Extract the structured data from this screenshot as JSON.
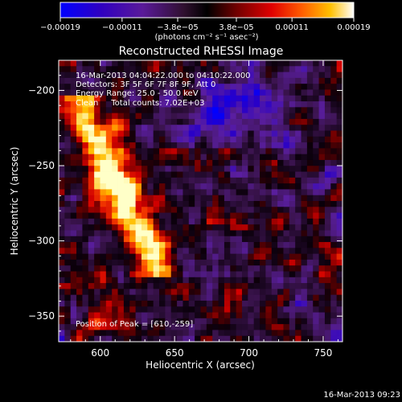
{
  "chart_data": {
    "type": "heatmap",
    "title": "Reconstructed RHESSI Image",
    "xlabel": "Heliocentric X (arcsec)",
    "ylabel": "Heliocentric Y (arcsec)",
    "xlim": [
      572,
      763
    ],
    "ylim": [
      -367,
      -180
    ],
    "x_ticks": [
      600,
      650,
      700,
      750
    ],
    "x_tick_labels": [
      "600",
      "650",
      "700",
      "750"
    ],
    "y_ticks": [
      -200,
      -250,
      -300,
      -350
    ],
    "y_tick_labels": [
      "-200",
      "-250",
      "-300",
      "-350"
    ],
    "colorbar": {
      "range": [
        -0.00019,
        0.00019
      ],
      "tick_labels": [
        "-0.00019",
        "-0.00011",
        "-3.8e-05",
        "3.8e-05",
        "0.00011",
        "0.00019"
      ],
      "units_label": "(photons cm⁻² s⁻¹ asec⁻²)",
      "colors": [
        "#0000ff",
        "#2a00c8",
        "#5a1a9a",
        "#7a2a8a",
        "#000000",
        "#6a0000",
        "#c00000",
        "#ff2a00",
        "#ff7a00",
        "#ffc000",
        "#ffff40",
        "#ffffff"
      ]
    },
    "annotations": [
      "16-Mar-2013 04:04:22.000 to 04:10:22.000",
      "Detectors: 3F 5F 6F 7F 8F 9F, Att 0",
      "Energy Range: 25.0 - 50.0 keV",
      "Clean     Total counts: 7.02E+03"
    ],
    "peak_label": "Position of Peak = [610,-259]",
    "peak_position": [
      610,
      -259
    ],
    "timestamp": "16-Mar-2013 09:23"
  }
}
